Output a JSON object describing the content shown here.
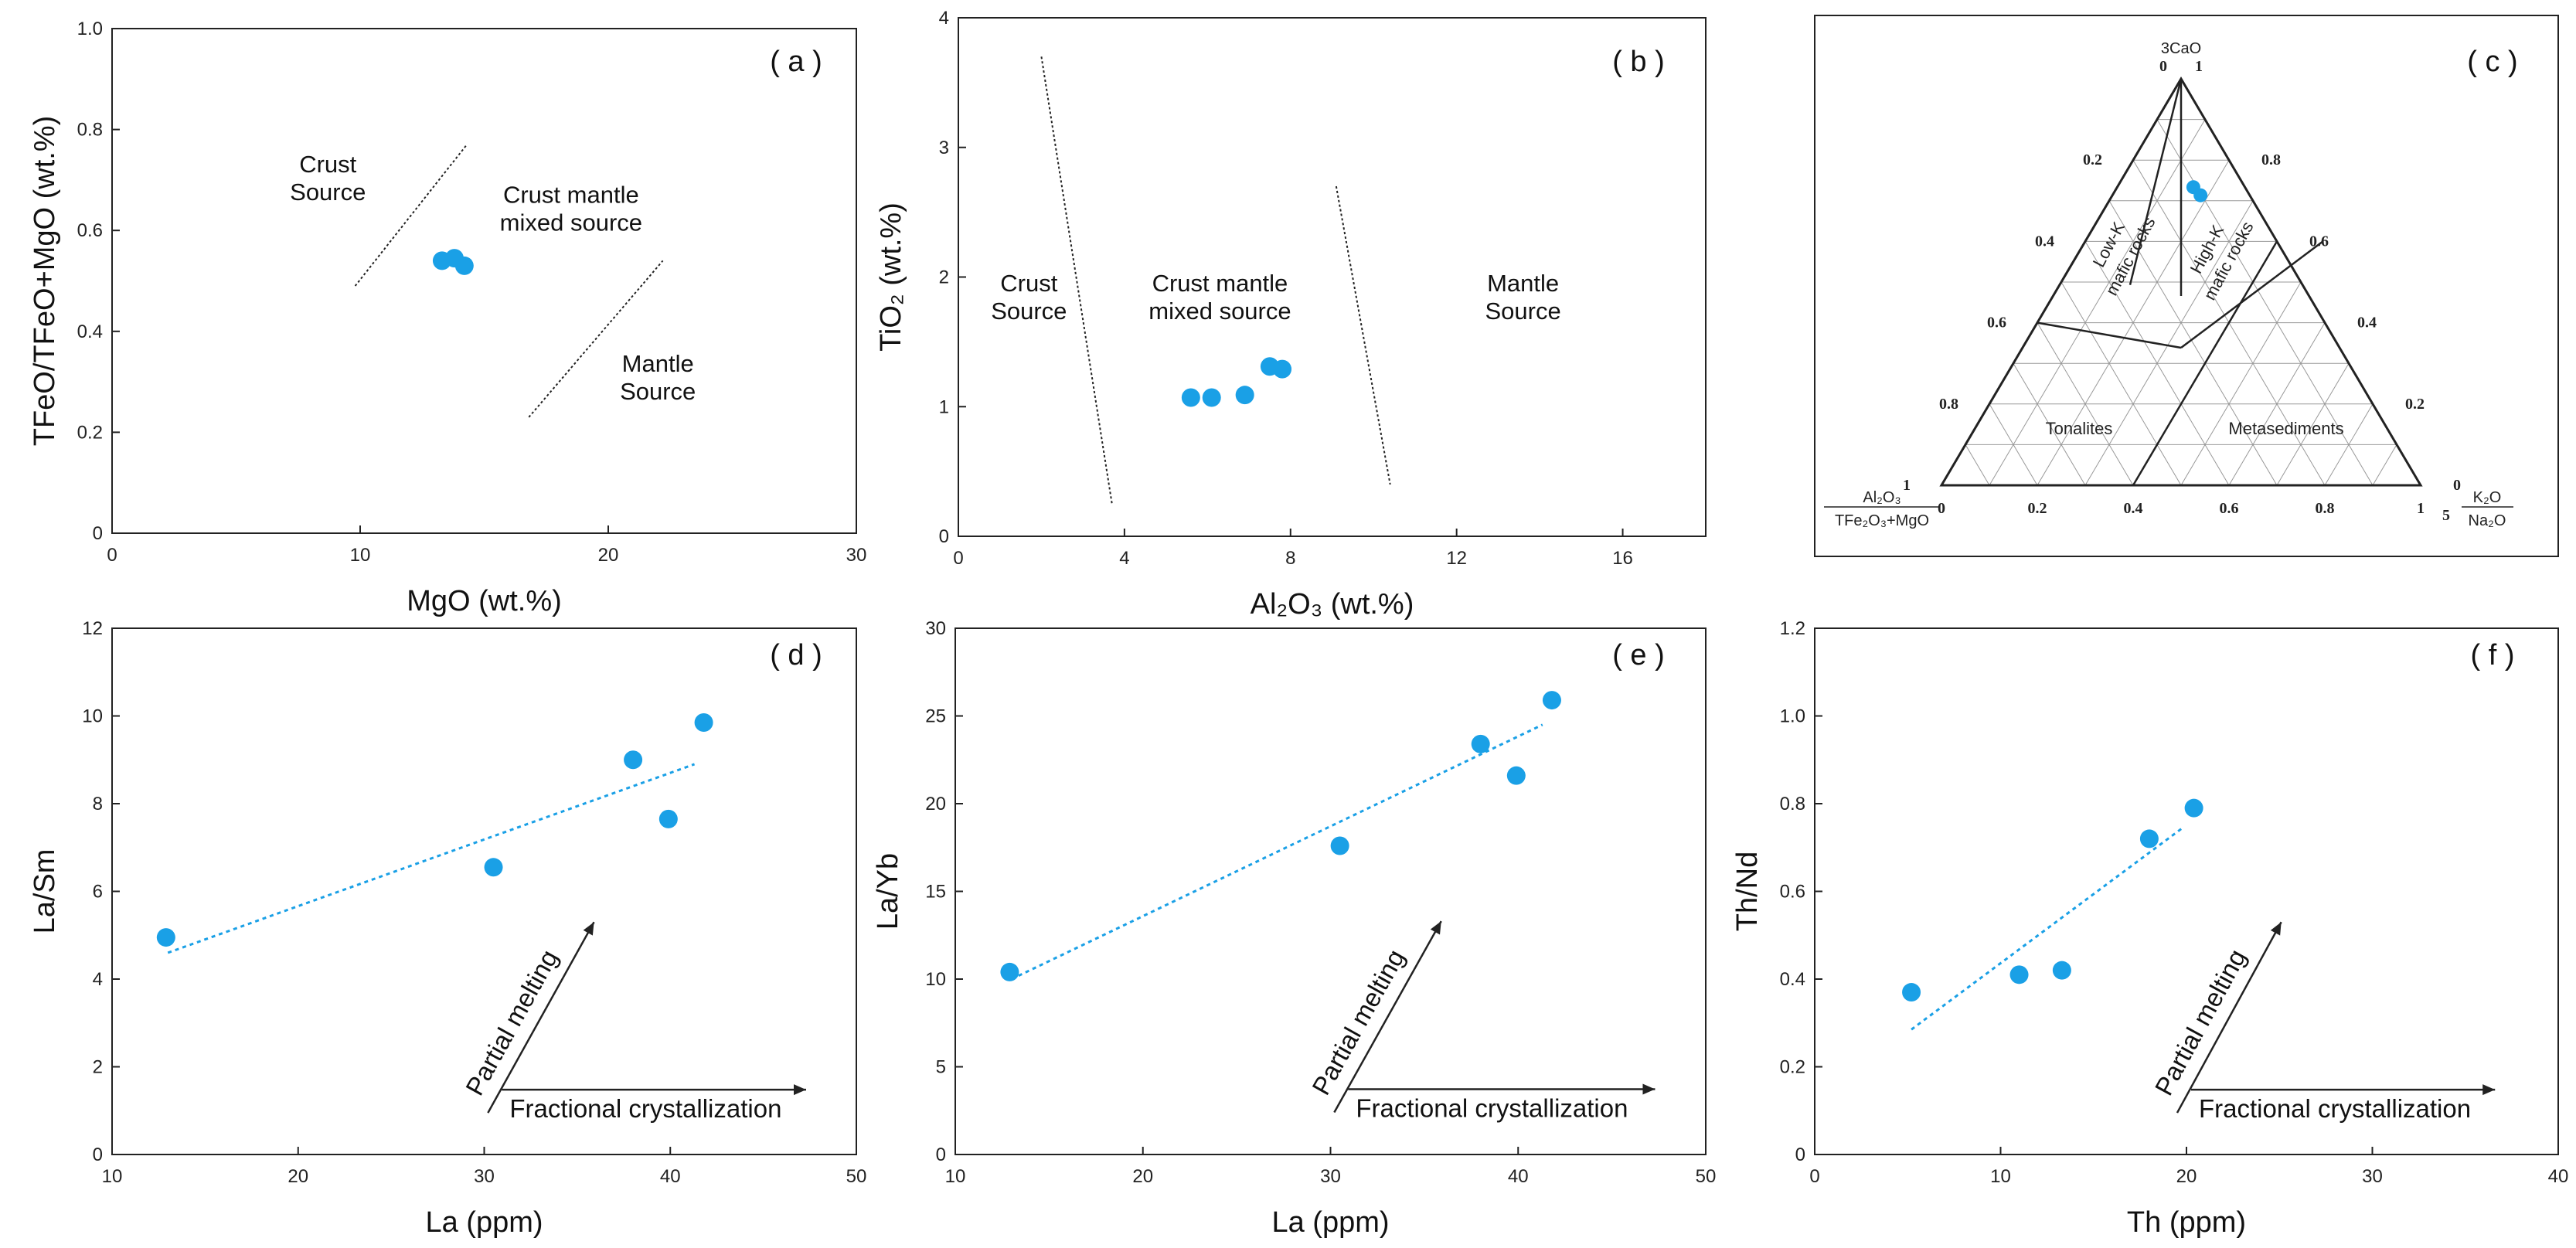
{
  "chart_data": [
    {
      "id": "a",
      "type": "scatter",
      "panel_label": "( a )",
      "xlabel": "MgO (wt.%)",
      "ylabel": "TFeO/TFeO+MgO (wt.%)",
      "xlim": [
        0,
        30
      ],
      "ylim": [
        0,
        1.0
      ],
      "xticks": [
        0,
        10,
        20,
        30
      ],
      "yticks": [
        0,
        0.2,
        0.4,
        0.6,
        0.8,
        1.0
      ],
      "ytick_labels": [
        "0",
        "0.2",
        "0.4",
        "0.6",
        "0.8",
        "1.0"
      ],
      "points": [
        [
          13.3,
          0.54
        ],
        [
          13.8,
          0.545
        ],
        [
          14.2,
          0.53
        ]
      ],
      "boundaries": [
        {
          "x": [
            9.8,
            14.3
          ],
          "y": [
            0.49,
            0.77
          ]
        },
        {
          "x": [
            16.8,
            22.2
          ],
          "y": [
            0.23,
            0.54
          ]
        }
      ],
      "annotations": [
        {
          "lines": [
            "Crust",
            "Source"
          ],
          "x": 8.7,
          "y": 0.715
        },
        {
          "lines": [
            "Crust mantle",
            "mixed source"
          ],
          "x": 18.5,
          "y": 0.655
        },
        {
          "lines": [
            "Mantle",
            "Source"
          ],
          "x": 22.0,
          "y": 0.32
        }
      ]
    },
    {
      "id": "b",
      "type": "scatter",
      "panel_label": "( b )",
      "xlabel": "Al₂O₃ (wt.%)",
      "ylabel": "TiO₂ (wt.%)",
      "xlim": [
        0,
        18
      ],
      "ylim": [
        0,
        4
      ],
      "xticks": [
        0,
        4,
        8,
        12,
        16
      ],
      "yticks": [
        0,
        1,
        2,
        3,
        4
      ],
      "ytick_labels": [
        "0",
        "1",
        "2",
        "3",
        "4"
      ],
      "points": [
        [
          5.6,
          1.07
        ],
        [
          6.1,
          1.07
        ],
        [
          6.9,
          1.09
        ],
        [
          7.5,
          1.31
        ],
        [
          7.8,
          1.29
        ]
      ],
      "boundaries": [
        {
          "x": [
            2.0,
            3.7
          ],
          "y": [
            3.7,
            0.25
          ]
        },
        {
          "x": [
            9.1,
            10.4
          ],
          "y": [
            2.7,
            0.4
          ]
        }
      ],
      "annotations": [
        {
          "lines": [
            "Crust",
            "Source"
          ],
          "x": 1.7,
          "y": 1.89
        },
        {
          "lines": [
            "Crust mantle",
            "mixed source"
          ],
          "x": 6.3,
          "y": 1.89
        },
        {
          "lines": [
            "Mantle",
            "Source"
          ],
          "x": 13.6,
          "y": 1.89
        }
      ]
    },
    {
      "id": "c",
      "type": "ternary",
      "panel_label": "( c )",
      "apex_label": "3CaO",
      "left_label_top": "Al₂O₃",
      "left_label_bottom": "TFe₂O₃+MgO",
      "right_label_top": "K₂O",
      "right_label_bottom": "Na₂O",
      "right_label_prefix": "5",
      "bottom_ticks": [
        "0",
        "0.2",
        "0.4",
        "0.6",
        "0.8",
        "1"
      ],
      "left_ticks": [
        "0",
        "0.2",
        "0.4",
        "0.6",
        "0.8",
        "1"
      ],
      "right_ticks": [
        "1",
        "0.8",
        "0.6",
        "0.4",
        "0.2",
        "0"
      ],
      "fields": [
        "Low-K mafic rocks",
        "High-K mafic rocks",
        "Tonalites",
        "Metasediments"
      ],
      "points": [
        [
          0.545,
          0.8
        ],
        [
          0.56,
          0.78
        ]
      ]
    },
    {
      "id": "d",
      "type": "scatter",
      "panel_label": "( d )",
      "xlabel": "La (ppm)",
      "ylabel": "La/Sm",
      "xlim": [
        10,
        50
      ],
      "ylim": [
        0,
        12
      ],
      "xticks": [
        10,
        20,
        30,
        40,
        50
      ],
      "yticks": [
        0,
        2,
        4,
        6,
        8,
        10,
        12
      ],
      "ytick_labels": [
        "0",
        "2",
        "4",
        "6",
        "8",
        "10",
        "12"
      ],
      "points": [
        [
          12.9,
          4.95
        ],
        [
          30.5,
          6.55
        ],
        [
          38.0,
          9.0
        ],
        [
          39.9,
          7.65
        ],
        [
          41.8,
          9.85
        ]
      ],
      "trend": {
        "x": [
          13,
          41.3
        ],
        "y": [
          4.6,
          8.9
        ]
      },
      "arrows": {
        "partial": "Partial melting",
        "fractional": "Fractional crystallization",
        "origin": [
          30.2,
          0.95
        ],
        "pm_end": [
          35.9,
          5.3
        ],
        "fc_end": [
          47.3,
          0.95
        ]
      }
    },
    {
      "id": "e",
      "type": "scatter",
      "panel_label": "( e )",
      "xlabel": "La (ppm)",
      "ylabel": "La/Yb",
      "xlim": [
        10,
        50
      ],
      "ylim": [
        0,
        30
      ],
      "xticks": [
        10,
        20,
        30,
        40,
        50
      ],
      "yticks": [
        0,
        5,
        10,
        15,
        20,
        25,
        30
      ],
      "ytick_labels": [
        "0",
        "5",
        "10",
        "15",
        "20",
        "25",
        "30"
      ],
      "points": [
        [
          12.9,
          10.4
        ],
        [
          30.5,
          17.6
        ],
        [
          38.0,
          23.4
        ],
        [
          39.9,
          21.6
        ],
        [
          41.8,
          25.9
        ]
      ],
      "trend": {
        "x": [
          13,
          41.3
        ],
        "y": [
          10.0,
          24.5
        ]
      },
      "arrows": {
        "partial": "Partial melting",
        "fractional": "Fractional crystallization",
        "origin": [
          30.2,
          2.4
        ],
        "pm_end": [
          35.9,
          13.3
        ],
        "fc_end": [
          47.3,
          2.4
        ]
      }
    },
    {
      "id": "f",
      "type": "scatter",
      "panel_label": "( f )",
      "xlabel": "Th (ppm)",
      "ylabel": "Th/Nd",
      "xlim": [
        0,
        40
      ],
      "ylim": [
        0,
        1.2
      ],
      "xticks": [
        0,
        10,
        20,
        30,
        40
      ],
      "yticks": [
        0,
        0.2,
        0.4,
        0.6,
        0.8,
        1.0,
        1.2
      ],
      "ytick_labels": [
        "0",
        "0.2",
        "0.4",
        "0.6",
        "0.8",
        "1.0",
        "1.2"
      ],
      "points": [
        [
          5.2,
          0.37
        ],
        [
          11.0,
          0.41
        ],
        [
          13.3,
          0.42
        ],
        [
          18.0,
          0.72
        ],
        [
          20.4,
          0.79
        ]
      ],
      "trend": {
        "x": [
          5.2,
          19.8
        ],
        "y": [
          0.285,
          0.745
        ]
      },
      "arrows": {
        "partial": "Partial melting",
        "fractional": "Fractional crystallization",
        "origin": [
          19.5,
          0.095
        ],
        "pm_end": [
          25.1,
          0.53
        ],
        "fc_end": [
          36.6,
          0.095
        ]
      }
    }
  ]
}
